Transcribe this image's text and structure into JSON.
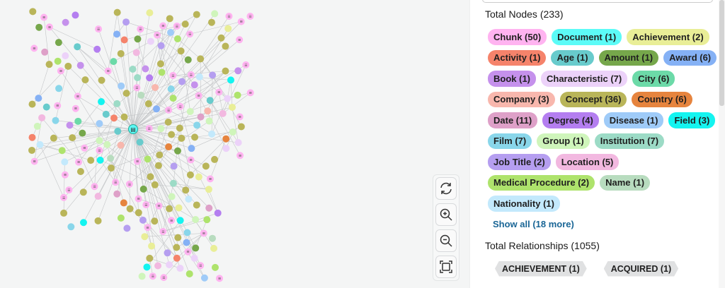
{
  "nodes_title": "Total Nodes (233)",
  "labels": [
    {
      "label": "Chunk (50)",
      "color": "#ffb3f0"
    },
    {
      "label": "Document (1)",
      "color": "#5cfbf7"
    },
    {
      "label": "Achievement (2)",
      "color": "#e9ee97"
    },
    {
      "label": "Activity (1)",
      "color": "#f5836b"
    },
    {
      "label": "Age (1)",
      "color": "#68cbcc"
    },
    {
      "label": "Amount (1)",
      "color": "#76a74b"
    },
    {
      "label": "Award (6)",
      "color": "#85b1f5"
    },
    {
      "label": "Book (1)",
      "color": "#c591ec"
    },
    {
      "label": "Characteristic (7)",
      "color": "#ecd2f9"
    },
    {
      "label": "City (6)",
      "color": "#6cdaa8"
    },
    {
      "label": "Company (3)",
      "color": "#f8b7ad"
    },
    {
      "label": "Concept (36)",
      "color": "#b9b559"
    },
    {
      "label": "Country (6)",
      "color": "#e6843e"
    },
    {
      "label": "Date (11)",
      "color": "#dea0c8"
    },
    {
      "label": "Degree (4)",
      "color": "#b47ef0"
    },
    {
      "label": "Disease (1)",
      "color": "#9fcbf8"
    },
    {
      "label": "Field (3)",
      "color": "#14f4f0"
    },
    {
      "label": "Film (7)",
      "color": "#89d6ea"
    },
    {
      "label": "Group (1)",
      "color": "#cff5bb"
    },
    {
      "label": "Institution (7)",
      "color": "#9cdbc6"
    },
    {
      "label": "Job Title (2)",
      "color": "#b59ef0"
    },
    {
      "label": "Location (5)",
      "color": "#f2b8e0"
    },
    {
      "label": "Medical Procedure (2)",
      "color": "#aee36c"
    },
    {
      "label": "Name (1)",
      "color": "#b8dcbf"
    },
    {
      "label": "Nationality (1)",
      "color": "#c3e9fc"
    }
  ],
  "show_all": "Show all (18 more)",
  "rels_title": "Total Relationships (1055)",
  "relationships": [
    {
      "label": "ACHIEVEMENT (1)"
    },
    {
      "label": "ACQUIRED (1)"
    }
  ],
  "controls": [
    "refresh-icon",
    "zoom-in-icon",
    "zoom-out-icon",
    "fit-screen-icon"
  ]
}
